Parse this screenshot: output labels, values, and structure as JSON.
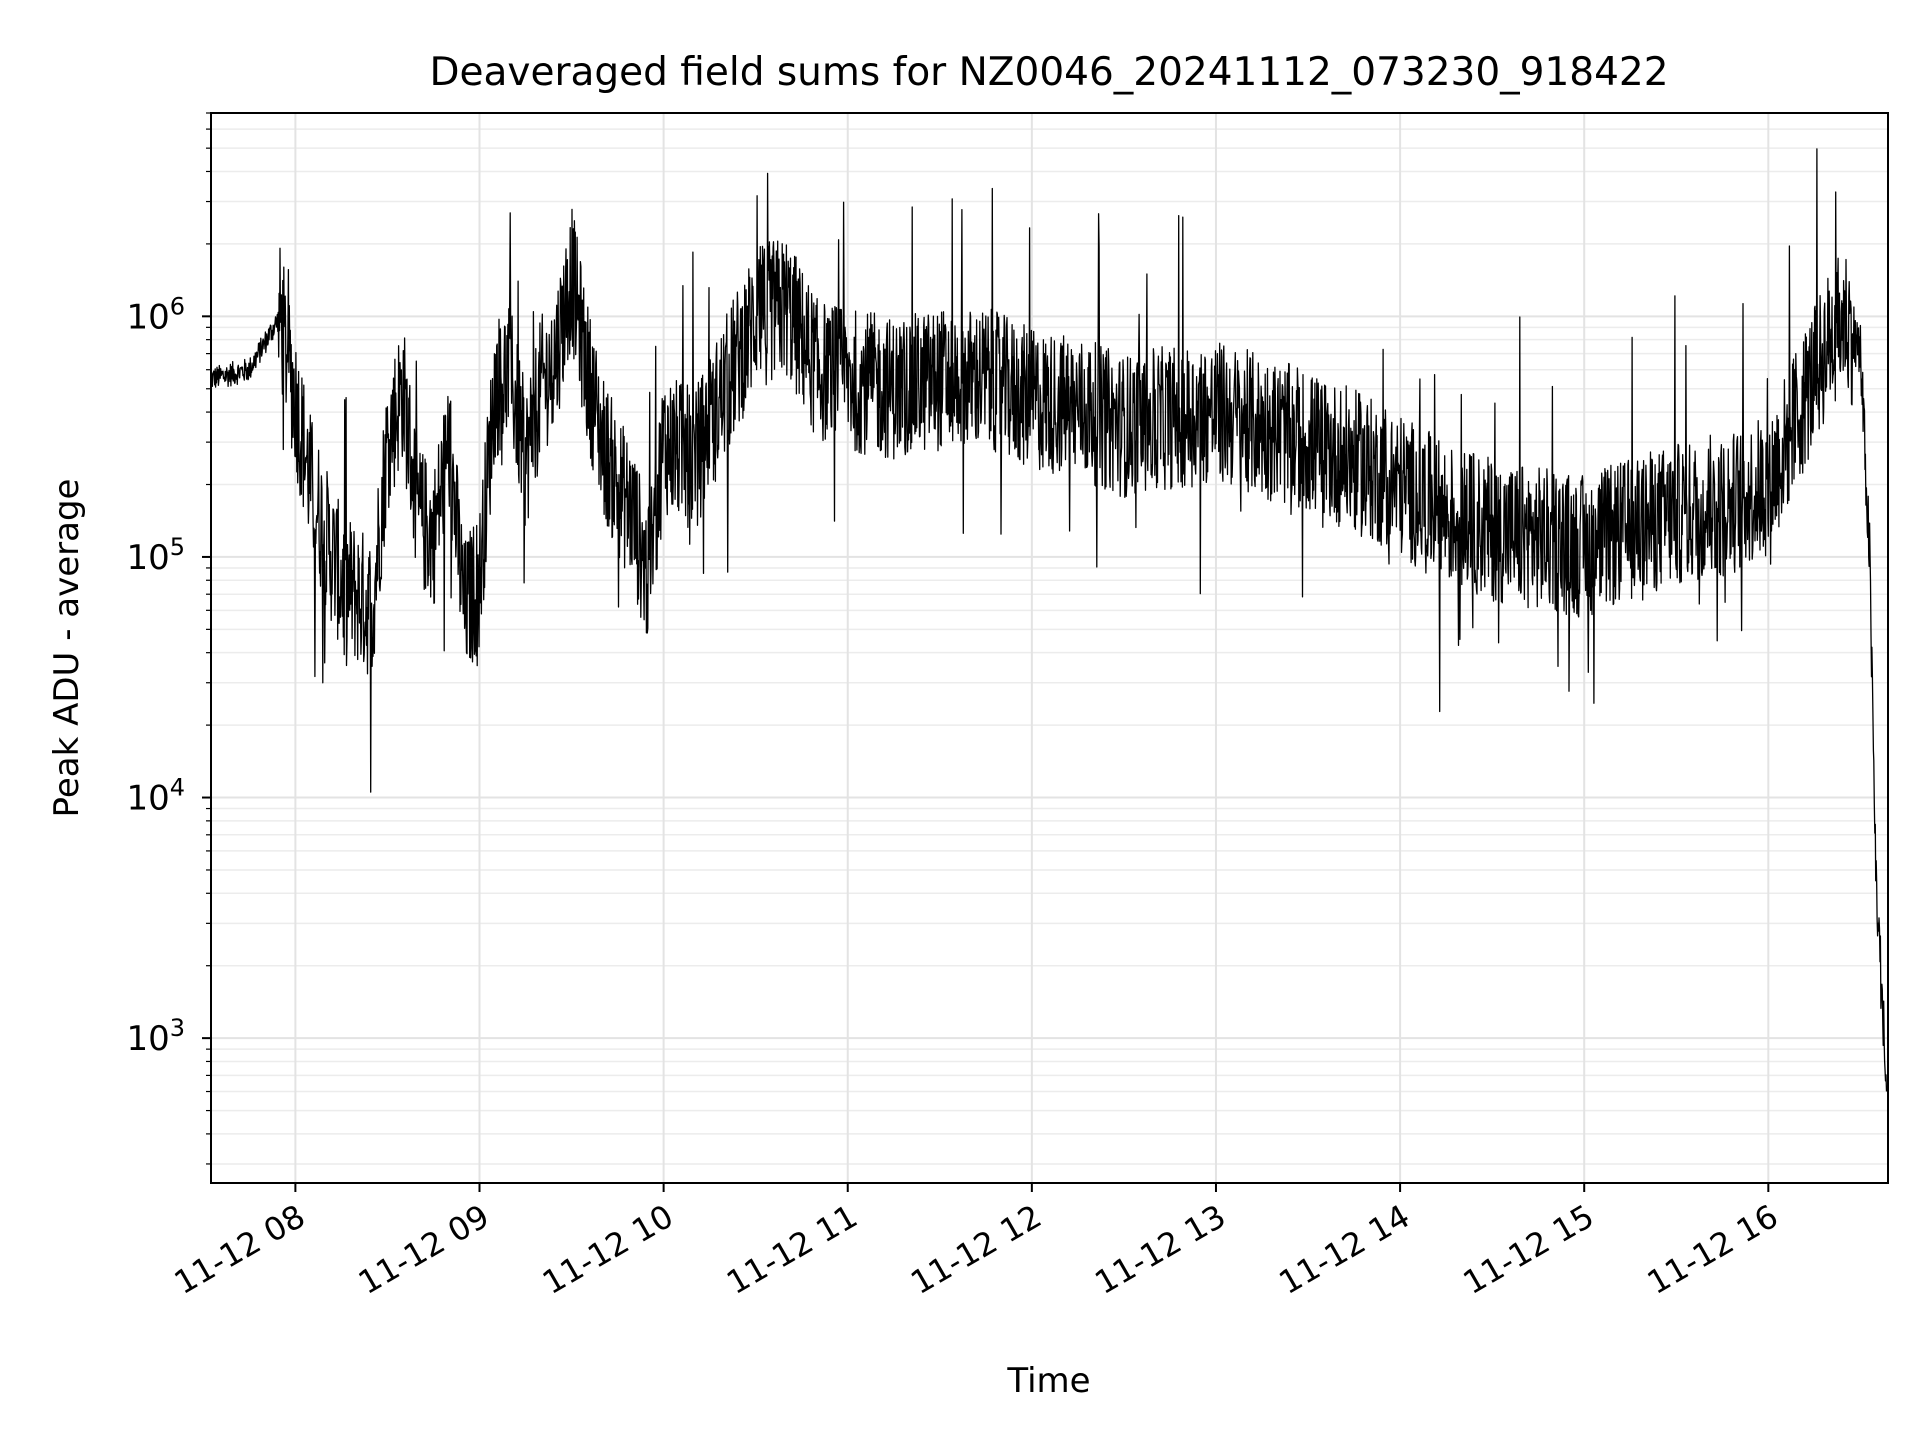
{
  "chart_data": {
    "type": "line",
    "title": "Deaveraged field sums for NZ0046_20241112_073230_918422",
    "xlabel": "Time",
    "ylabel": "Peak ADU - average",
    "yscale": "log",
    "ylim": [
      250,
      7000000
    ],
    "xlim": [
      "2024-11-12 07:32:30",
      "2024-11-12 16:39:00"
    ],
    "grid": true,
    "x_ticks": [
      "11-12 08",
      "11-12 09",
      "11-12 10",
      "11-12 11",
      "11-12 12",
      "11-12 13",
      "11-12 14",
      "11-12 15",
      "11-12 16"
    ],
    "y_ticks": [
      {
        "base": "10",
        "exp": "3",
        "value": 1000
      },
      {
        "base": "10",
        "exp": "4",
        "value": 10000
      },
      {
        "base": "10",
        "exp": "5",
        "value": 100000
      },
      {
        "base": "10",
        "exp": "6",
        "value": 1000000
      }
    ],
    "line_color": "#000000",
    "x": [
      "2024-11-12 07:32:30",
      "2024-11-12 07:45:00",
      "2024-11-12 07:55:00",
      "2024-11-12 08:00:00",
      "2024-11-12 08:05:00",
      "2024-11-12 08:10:00",
      "2024-11-12 08:15:00",
      "2024-11-12 08:20:00",
      "2024-11-12 08:25:00",
      "2024-11-12 08:30:00",
      "2024-11-12 08:35:00",
      "2024-11-12 08:40:00",
      "2024-11-12 08:45:00",
      "2024-11-12 08:50:00",
      "2024-11-12 08:55:00",
      "2024-11-12 09:00:00",
      "2024-11-12 09:05:00",
      "2024-11-12 09:10:00",
      "2024-11-12 09:15:00",
      "2024-11-12 09:20:00",
      "2024-11-12 09:25:00",
      "2024-11-12 09:30:00",
      "2024-11-12 09:35:00",
      "2024-11-12 09:40:00",
      "2024-11-12 09:45:00",
      "2024-11-12 09:50:00",
      "2024-11-12 09:55:00",
      "2024-11-12 10:00:00",
      "2024-11-12 10:10:00",
      "2024-11-12 10:20:00",
      "2024-11-12 10:30:00",
      "2024-11-12 10:40:00",
      "2024-11-12 10:50:00",
      "2024-11-12 11:00:00",
      "2024-11-12 11:15:00",
      "2024-11-12 11:30:00",
      "2024-11-12 11:45:00",
      "2024-11-12 12:00:00",
      "2024-11-12 12:15:00",
      "2024-11-12 12:30:00",
      "2024-11-12 12:45:00",
      "2024-11-12 13:00:00",
      "2024-11-12 13:15:00",
      "2024-11-12 13:30:00",
      "2024-11-12 13:45:00",
      "2024-11-12 14:00:00",
      "2024-11-12 14:15:00",
      "2024-11-12 14:30:00",
      "2024-11-12 14:45:00",
      "2024-11-12 15:00:00",
      "2024-11-12 15:15:00",
      "2024-11-12 15:30:00",
      "2024-11-12 15:45:00",
      "2024-11-12 16:00:00",
      "2024-11-12 16:10:00",
      "2024-11-12 16:20:00",
      "2024-11-12 16:25:00",
      "2024-11-12 16:30:00",
      "2024-11-12 16:33:00",
      "2024-11-12 16:35:00",
      "2024-11-12 16:37:00",
      "2024-11-12 16:38:30"
    ],
    "y": [
      550000,
      600000,
      1000000,
      450000,
      200000,
      120000,
      80000,
      70000,
      60000,
      300000,
      500000,
      150000,
      120000,
      300000,
      60000,
      80000,
      500000,
      600000,
      250000,
      500000,
      700000,
      1500000,
      600000,
      300000,
      200000,
      150000,
      80000,
      300000,
      250000,
      500000,
      1000000,
      1100000,
      600000,
      550000,
      500000,
      550000,
      550000,
      450000,
      420000,
      350000,
      380000,
      400000,
      350000,
      300000,
      250000,
      200000,
      150000,
      130000,
      120000,
      110000,
      130000,
      150000,
      160000,
      200000,
      400000,
      800000,
      1000000,
      700000,
      100000,
      5000,
      1500,
      600
    ]
  }
}
